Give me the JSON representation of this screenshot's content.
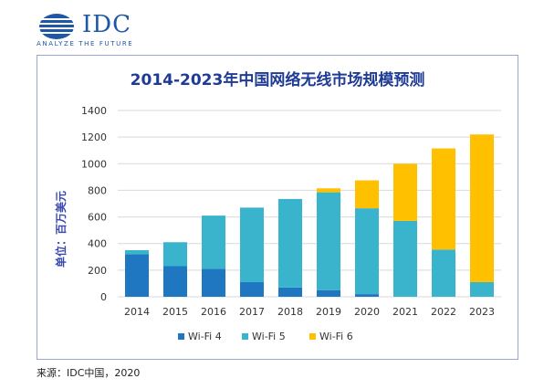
{
  "logo": {
    "text": "IDC",
    "tagline": "ANALYZE THE FUTURE"
  },
  "source": "来源：IDC中国，2020",
  "chart_data": {
    "type": "bar",
    "stacked": true,
    "title": "2014-2023年中国网络无线市场规模预测",
    "ylabel": "单位：百万美元",
    "xlabel": "",
    "ylim": [
      0,
      1400
    ],
    "yticks": [
      0,
      200,
      400,
      600,
      800,
      1000,
      1200,
      1400
    ],
    "grid": true,
    "legend_position": "bottom",
    "categories": [
      "2014",
      "2015",
      "2016",
      "2017",
      "2018",
      "2019",
      "2020",
      "2021",
      "2022",
      "2023"
    ],
    "series": [
      {
        "name": "Wi-Fi 4",
        "color": "#1f77c1",
        "values": [
          320,
          230,
          210,
          110,
          70,
          50,
          20,
          0,
          0,
          0
        ]
      },
      {
        "name": "Wi-Fi 5",
        "color": "#3ab4cc",
        "values": [
          30,
          180,
          400,
          560,
          665,
          735,
          645,
          570,
          355,
          110
        ]
      },
      {
        "name": "Wi-Fi 6",
        "color": "#ffc000",
        "values": [
          0,
          0,
          0,
          0,
          0,
          30,
          210,
          430,
          760,
          1110
        ]
      }
    ]
  }
}
